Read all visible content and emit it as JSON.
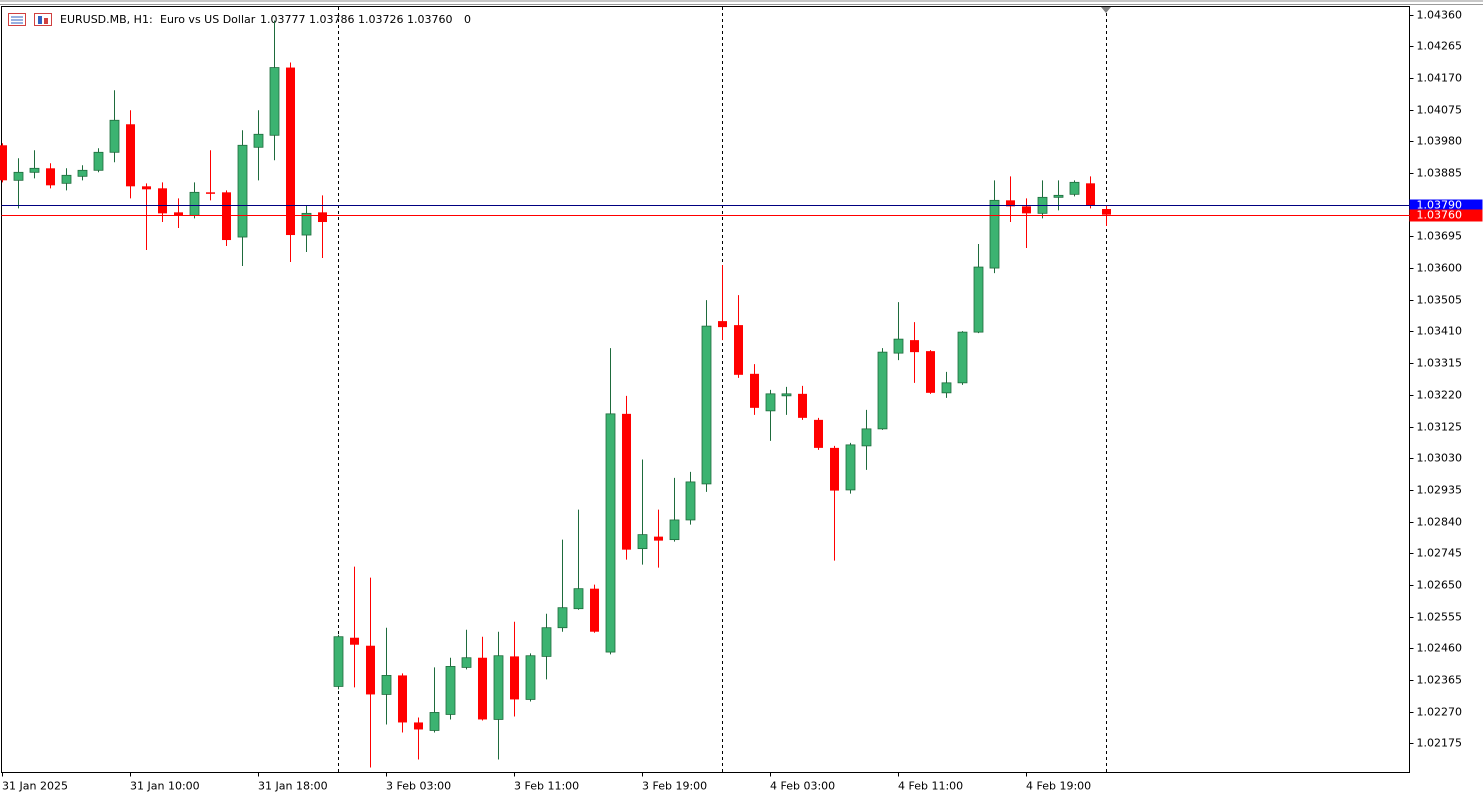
{
  "chart_data": {
    "type": "candlestick",
    "title": "EURUSD.MB, H1:",
    "subtitle": "Euro vs US Dollar",
    "quote": "1.03777 1.03786 1.03726 1.03760",
    "volume": "0",
    "categories": [
      "31 Jan 2025",
      null,
      null,
      null,
      null,
      null,
      null,
      null,
      "31 Jan 10:00",
      null,
      null,
      null,
      null,
      null,
      null,
      null,
      "31 Jan 18:00",
      null,
      null,
      null,
      null,
      null,
      null,
      null,
      "3 Feb 03:00",
      null,
      null,
      null,
      null,
      null,
      null,
      null,
      "3 Feb 11:00",
      null,
      null,
      null,
      null,
      null,
      null,
      null,
      "3 Feb 19:00",
      null,
      null,
      null,
      null,
      null,
      null,
      null,
      "4 Feb 03:00",
      null,
      null,
      null,
      null,
      null,
      null,
      null,
      "4 Feb 11:00",
      null,
      null,
      null,
      null,
      null,
      null,
      null,
      "4 Feb 19:00",
      null,
      null,
      null,
      null,
      null
    ],
    "open": [
      1.03968,
      1.03863,
      1.03887,
      1.03899,
      1.03854,
      1.03875,
      1.03893,
      1.03947,
      1.04031,
      1.03845,
      1.03839,
      1.03767,
      1.03758,
      1.03827,
      1.03827,
      1.03693,
      1.03962,
      1.03998,
      1.04201,
      1.03699,
      1.03767,
      1.02346,
      1.02492,
      1.02468,
      1.02322,
      1.02379,
      1.02238,
      1.02214,
      1.02262,
      1.02403,
      1.02432,
      1.02247,
      1.02436,
      1.02307,
      1.02436,
      1.02522,
      1.02579,
      1.02639,
      1.02449,
      1.03163,
      1.02759,
      1.02795,
      1.02786,
      1.02845,
      1.02953,
      1.03441,
      1.03429,
      1.03283,
      1.03172,
      1.03217,
      1.03223,
      1.03145,
      1.03061,
      1.02935,
      1.03067,
      1.03118,
      1.03345,
      1.03384,
      1.03351,
      1.03226,
      1.03256,
      1.03408,
      1.036,
      1.03803,
      1.03785,
      1.03764,
      1.03812,
      1.03821,
      1.03854,
      1.03777
    ],
    "high": [
      1.03974,
      1.03929,
      1.03953,
      1.03914,
      1.03899,
      1.03908,
      1.03959,
      1.04133,
      1.04073,
      1.03854,
      1.03857,
      1.03809,
      1.03857,
      1.03953,
      1.03833,
      1.04013,
      1.04073,
      1.04342,
      1.04216,
      1.03788,
      1.03818,
      1.02501,
      1.02705,
      1.02672,
      1.02522,
      1.02385,
      1.02253,
      1.02403,
      1.02432,
      1.02516,
      1.02495,
      1.0251,
      1.0254,
      1.02445,
      1.02564,
      1.02786,
      1.02876,
      1.02651,
      1.0336,
      1.03217,
      1.03026,
      1.02876,
      1.02971,
      1.02989,
      1.03504,
      1.03609,
      1.03519,
      1.03312,
      1.03235,
      1.03244,
      1.03247,
      1.03151,
      1.03067,
      1.03076,
      1.03175,
      1.0336,
      1.03498,
      1.03438,
      1.03354,
      1.03289,
      1.03411,
      1.03672,
      1.03863,
      1.03875,
      1.03809,
      1.03863,
      1.03863,
      1.03863,
      1.03875,
      1.03786
    ],
    "low": [
      1.03857,
      1.03779,
      1.03869,
      1.03839,
      1.03833,
      1.03863,
      1.03887,
      1.03917,
      1.03809,
      1.03654,
      1.03738,
      1.0372,
      1.03749,
      1.03803,
      1.03666,
      1.03606,
      1.03863,
      1.03923,
      1.03618,
      1.03648,
      1.0363,
      1.02337,
      1.02343,
      1.02103,
      1.02232,
      1.02208,
      1.02127,
      1.02208,
      1.02247,
      1.02397,
      1.02244,
      1.02127,
      1.02256,
      1.02301,
      1.02367,
      1.0251,
      1.02576,
      1.02507,
      1.02442,
      1.02726,
      1.02711,
      1.02702,
      1.0278,
      1.02831,
      1.02929,
      1.03384,
      1.03271,
      1.0316,
      1.03082,
      1.0316,
      1.03145,
      1.03055,
      1.02723,
      1.02924,
      1.02995,
      1.03115,
      1.03324,
      1.03256,
      1.03223,
      1.03211,
      1.0325,
      1.03405,
      1.03585,
      1.03738,
      1.0366,
      1.03749,
      1.03773,
      1.03815,
      1.03779,
      1.03726
    ],
    "close": [
      1.03863,
      1.03887,
      1.03899,
      1.03848,
      1.03878,
      1.03893,
      1.03947,
      1.04043,
      1.03845,
      1.03836,
      1.03764,
      1.03758,
      1.03827,
      1.03824,
      1.03684,
      1.03968,
      1.04001,
      1.04201,
      1.03699,
      1.03764,
      1.03738,
      1.02495,
      1.02471,
      1.02322,
      1.02379,
      1.02238,
      1.02217,
      1.02268,
      1.02406,
      1.02432,
      1.02247,
      1.02438,
      1.02307,
      1.02438,
      1.02522,
      1.02582,
      1.02639,
      1.0251,
      1.03163,
      1.02756,
      1.02801,
      1.02783,
      1.02845,
      1.02959,
      1.03426,
      1.03423,
      1.0328,
      1.03181,
      1.03223,
      1.03223,
      1.03151,
      1.03061,
      1.02933,
      1.0307,
      1.03118,
      1.03348,
      1.03387,
      1.03348,
      1.03226,
      1.03256,
      1.03408,
      1.03603,
      1.03803,
      1.03785,
      1.03764,
      1.03812,
      1.03818,
      1.03857,
      1.03788,
      1.0376
    ],
    "up_color": "#3cb371",
    "up_outline": "#1e6b3c",
    "down_color": "#ff0000",
    "ylim": [
      1.02088,
      1.04384
    ],
    "yticks": [
      {
        "value": 1.0436,
        "label": "1.04360"
      },
      1.04265,
      {
        "value": 1.0417,
        "label": "1.04170"
      },
      1.04075,
      {
        "value": 1.0398,
        "label": "1.03980"
      },
      1.03885,
      1.03695,
      {
        "value": 1.036,
        "label": "1.03600"
      },
      1.03505,
      {
        "value": 1.0341,
        "label": "1.03410"
      },
      1.03315,
      {
        "value": 1.0322,
        "label": "1.03220"
      },
      1.03125,
      {
        "value": 1.0303,
        "label": "1.03030"
      },
      1.02935,
      {
        "value": 1.0284,
        "label": "1.02840"
      },
      1.02745,
      {
        "value": 1.0265,
        "label": "1.02650"
      },
      1.02555,
      {
        "value": 1.0246,
        "label": "1.02460"
      },
      1.02365,
      {
        "value": 1.0227,
        "label": "1.02270"
      },
      1.02175
    ],
    "ask": {
      "value": 1.0379,
      "label": "1.03790",
      "color": "#0000ff",
      "line_color": "#000080"
    },
    "bid": {
      "value": 1.0376,
      "label": "1.03760",
      "color": "#ff0000",
      "line_color": "#ff0000"
    },
    "grid": false
  }
}
